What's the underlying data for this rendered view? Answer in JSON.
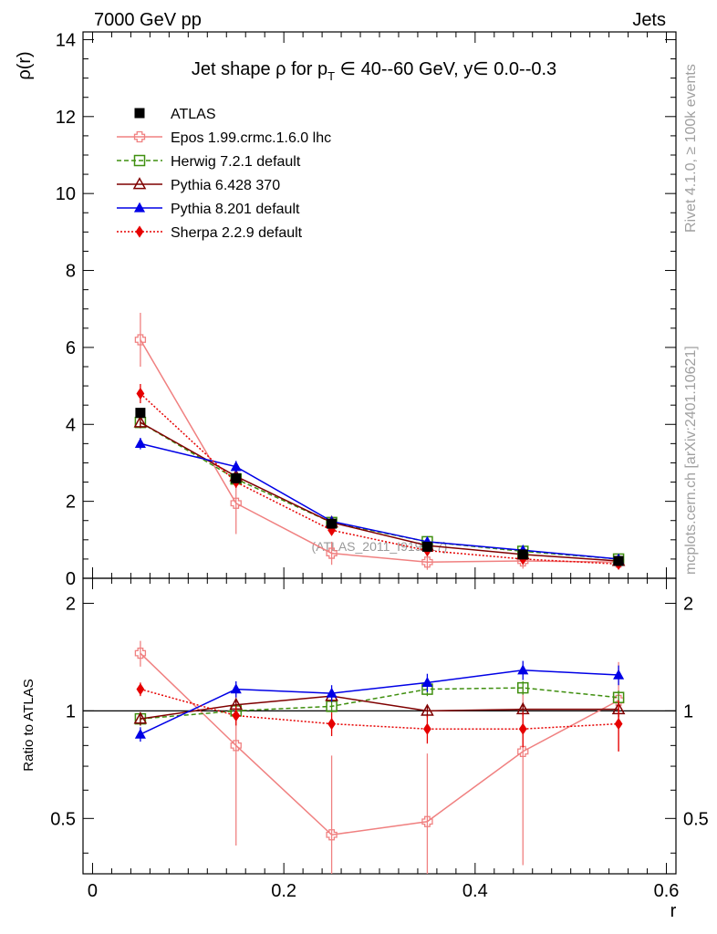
{
  "header": {
    "left": "7000 GeV pp",
    "right": "Jets",
    "side_top": "Rivet 4.1.0, ≥ 100k events",
    "side_bottom": "mcplots.cern.ch [arXiv:2401.10621]",
    "watermark": "(ATLAS_2011_I919017)"
  },
  "chart_data": {
    "type": "line",
    "title": "Jet shape ρ for p_T ∈ 40--60 GeV, y ∈ 0.0--0.3",
    "title_parts": {
      "pre": "Jet shape ρ for p",
      "sub": "T",
      "post": " ∈ 40--60 GeV, y∈ 0.0--0.3"
    },
    "x": [
      0.05,
      0.15,
      0.25,
      0.35,
      0.45,
      0.55
    ],
    "xlabel": "r",
    "xlim": [
      -0.01,
      0.61
    ],
    "xticks": [
      "0",
      "0.2",
      "0.4",
      "0.6"
    ],
    "main": {
      "ylabel": "ρ(r)",
      "ylim": [
        0,
        14.2
      ],
      "yticks": [
        "0",
        "2",
        "4",
        "6",
        "8",
        "10",
        "12",
        "14"
      ]
    },
    "ratio": {
      "ylabel": "Ratio to ATLAS",
      "ylim": [
        0.35,
        2.35
      ],
      "yticks": [
        "0.5",
        "1",
        "2"
      ],
      "reference": 1
    },
    "legend_position": "top-left",
    "series": [
      {
        "name": "ATLAS",
        "color": "#000000",
        "marker": "square-filled",
        "dash": "",
        "errors": [
          0.1,
          0.1,
          0.06,
          0.04,
          0.03,
          0.02
        ],
        "values": [
          4.3,
          2.6,
          1.42,
          0.82,
          0.62,
          0.45
        ],
        "ratio": [
          1.0,
          1.0,
          1.0,
          1.0,
          1.0,
          1.0
        ],
        "ratio_errors": [
          0,
          0,
          0,
          0,
          0,
          0
        ]
      },
      {
        "name": "Epos 1.99.crmc.1.6.0 lhc",
        "color": "#f08080",
        "marker": "plus-square",
        "dash": "",
        "values": [
          6.2,
          1.95,
          0.65,
          0.42,
          0.45,
          0.42
        ],
        "errors": [
          0.7,
          0.8,
          0.3,
          0.2,
          0.2,
          0.15
        ],
        "ratio": [
          1.45,
          0.8,
          0.45,
          0.49,
          0.77,
          1.07
        ],
        "ratio_errors": [
          0.12,
          0.38,
          0.3,
          0.27,
          0.4,
          0.3
        ]
      },
      {
        "name": "Herwig 7.2.1 default",
        "color": "#3f8f0f",
        "marker": "square-open",
        "dash": "5,3",
        "values": [
          4.05,
          2.58,
          1.45,
          0.95,
          0.7,
          0.5
        ],
        "errors": [
          0.15,
          0.1,
          0.05,
          0.04,
          0.03,
          0.02
        ],
        "ratio": [
          0.95,
          1.0,
          1.03,
          1.15,
          1.16,
          1.09
        ],
        "ratio_errors": [
          0.04,
          0.04,
          0.04,
          0.05,
          0.05,
          0.05
        ]
      },
      {
        "name": "Pythia 6.428 370",
        "color": "#7f0000",
        "marker": "triangle-open",
        "dash": "",
        "values": [
          4.05,
          2.65,
          1.45,
          0.85,
          0.62,
          0.45
        ],
        "errors": [
          0.15,
          0.1,
          0.05,
          0.04,
          0.03,
          0.02
        ],
        "ratio": [
          0.95,
          1.04,
          1.1,
          1.0,
          1.01,
          1.01
        ],
        "ratio_errors": [
          0.04,
          0.04,
          0.04,
          0.04,
          0.04,
          0.05
        ]
      },
      {
        "name": "Pythia 8.201 default",
        "color": "#0000e6",
        "marker": "triangle-filled",
        "dash": "",
        "values": [
          3.5,
          2.9,
          1.48,
          0.95,
          0.73,
          0.5
        ],
        "errors": [
          0.15,
          0.15,
          0.06,
          0.05,
          0.04,
          0.03
        ],
        "ratio": [
          0.86,
          1.15,
          1.12,
          1.2,
          1.3,
          1.26
        ],
        "ratio_errors": [
          0.04,
          0.06,
          0.06,
          0.07,
          0.08,
          0.08
        ]
      },
      {
        "name": "Sherpa 2.2.9 default",
        "color": "#e60000",
        "marker": "diamond-filled",
        "dash": "2,2",
        "values": [
          4.8,
          2.5,
          1.25,
          0.72,
          0.5,
          0.37
        ],
        "errors": [
          0.25,
          0.15,
          0.1,
          0.06,
          0.05,
          0.05
        ],
        "ratio": [
          1.15,
          0.97,
          0.92,
          0.89,
          0.89,
          0.92
        ],
        "ratio_errors": [
          0.05,
          0.06,
          0.07,
          0.08,
          0.1,
          0.15
        ]
      }
    ]
  }
}
